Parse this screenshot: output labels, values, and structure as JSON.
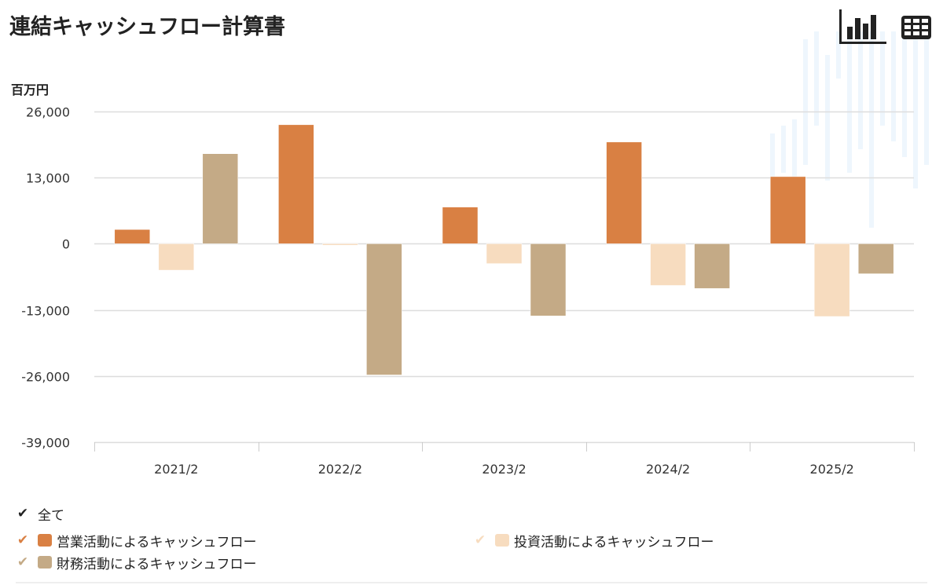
{
  "header": {
    "title": "連結キャッシュフロー計算書",
    "unit_label": "百万円",
    "chart_view_icon": "bar-chart-icon",
    "table_view_icon": "table-icon"
  },
  "colors": {
    "operating": "#d98043",
    "investing": "#f7dcbf",
    "financing": "#c4aa86",
    "grid": "#dddddd",
    "text": "#222222"
  },
  "legend": {
    "all_label": "全て",
    "items": [
      {
        "label": "営業活動によるキャッシュフロー",
        "color": "#d98043",
        "checked": true
      },
      {
        "label": "投資活動によるキャッシュフロー",
        "color": "#f7dcbf",
        "checked": true
      },
      {
        "label": "財務活動によるキャッシュフロー",
        "color": "#c4aa86",
        "checked": true
      }
    ]
  },
  "chart_data": {
    "type": "bar",
    "title": "連結キャッシュフロー計算書",
    "ylabel": "百万円",
    "xlabel": "",
    "categories": [
      "2021/2",
      "2022/2",
      "2023/2",
      "2024/2",
      "2025/2"
    ],
    "series": [
      {
        "name": "営業活動によるキャッシュフロー",
        "color": "#d98043",
        "values": [
          2800,
          23400,
          7200,
          20000,
          13200
        ]
      },
      {
        "name": "投資活動によるキャッシュフロー",
        "color": "#f7dcbf",
        "values": [
          -5200,
          -300,
          -3900,
          -8200,
          -14300
        ]
      },
      {
        "name": "財務活動によるキャッシュフロー",
        "color": "#c4aa86",
        "values": [
          17700,
          -25800,
          -14200,
          -8800,
          -5900
        ]
      }
    ],
    "ylim": [
      -39000,
      26000
    ],
    "yticks": [
      26000,
      13000,
      0,
      -13000,
      -26000,
      -39000
    ],
    "ytick_labels": [
      "26,000",
      "13,000",
      "0",
      "-13,000",
      "-26,000",
      "-39,000"
    ],
    "grid": true,
    "legend_position": "bottom"
  }
}
